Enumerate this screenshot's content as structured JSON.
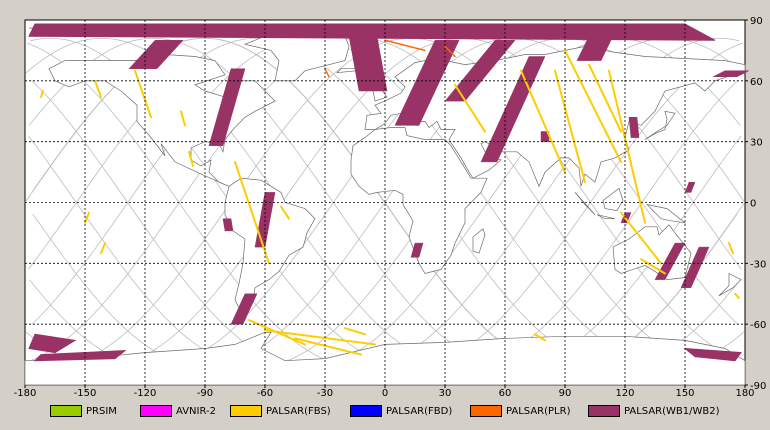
{
  "map": {
    "lon_ticks": [
      "-180",
      "-150",
      "-120",
      "-90",
      "-60",
      "-30",
      "0",
      "30",
      "60",
      "90",
      "120",
      "150",
      "180"
    ],
    "lat_ticks": [
      "90",
      "60",
      "30",
      "0",
      "-30",
      "-60",
      "-90"
    ],
    "colors": {
      "background": "#ffffff",
      "land": "#ffffff",
      "coast": "#6b6b6b",
      "orbit": "#bdbdbd",
      "grid": "#000000",
      "wb": "#993366",
      "fbs": "#ffcc00",
      "plr": "#ff6600"
    }
  },
  "legend": [
    {
      "label": "PRSIM",
      "color": "#99cc00"
    },
    {
      "label": "AVNIR-2",
      "color": "#ff00ff"
    },
    {
      "label": "PALSAR(FBS)",
      "color": "#ffcc00"
    },
    {
      "label": "PALSAR(FBD)",
      "color": "#0000ff"
    },
    {
      "label": "PALSAR(PLR)",
      "color": "#ff6600"
    },
    {
      "label": "PALSAR(WB1/WB2)",
      "color": "#993366"
    }
  ]
}
